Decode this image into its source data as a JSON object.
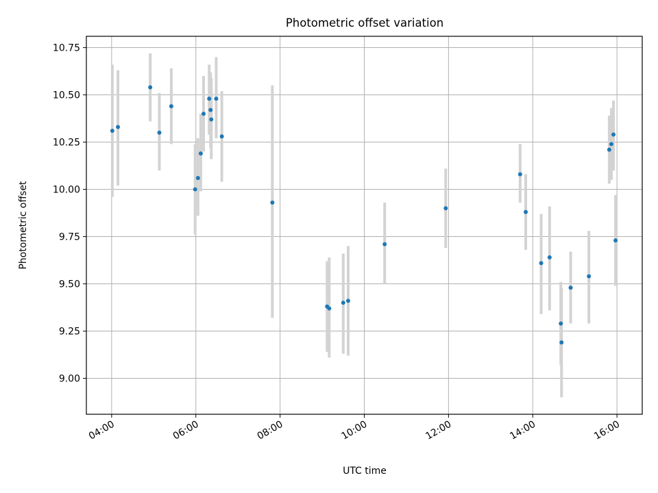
{
  "chart_data": {
    "type": "scatter",
    "title": "Photometric offset variation",
    "xlabel": "UTC time",
    "ylabel": "Photometric offset",
    "x_range_hours": [
      3.4,
      16.6
    ],
    "ylim": [
      8.81,
      10.81
    ],
    "x_ticks": [
      {
        "hour": 4,
        "label": "04:00"
      },
      {
        "hour": 6,
        "label": "06:00"
      },
      {
        "hour": 8,
        "label": "08:00"
      },
      {
        "hour": 10,
        "label": "10:00"
      },
      {
        "hour": 12,
        "label": "12:00"
      },
      {
        "hour": 14,
        "label": "14:00"
      },
      {
        "hour": 16,
        "label": "16:00"
      }
    ],
    "y_ticks": [
      {
        "value": 9.0,
        "label": "9.00"
      },
      {
        "value": 9.25,
        "label": "9.25"
      },
      {
        "value": 9.5,
        "label": "9.50"
      },
      {
        "value": 9.75,
        "label": "9.75"
      },
      {
        "value": 10.0,
        "label": "10.00"
      },
      {
        "value": 10.25,
        "label": "10.25"
      },
      {
        "value": 10.5,
        "label": "10.50"
      },
      {
        "value": 10.75,
        "label": "10.75"
      }
    ],
    "grid": true,
    "legend": "none",
    "colors": {
      "point": "#1f77b4",
      "errorbar": "#d3d3d3",
      "grid": "#b0b0b0"
    },
    "points": [
      {
        "time": "04:01",
        "y": 10.31,
        "lo": 9.96,
        "hi": 10.66
      },
      {
        "time": "04:09",
        "y": 10.33,
        "lo": 10.02,
        "hi": 10.63
      },
      {
        "time": "04:55",
        "y": 10.54,
        "lo": 10.36,
        "hi": 10.72
      },
      {
        "time": "05:08",
        "y": 10.3,
        "lo": 10.1,
        "hi": 10.51
      },
      {
        "time": "05:25",
        "y": 10.44,
        "lo": 10.24,
        "hi": 10.64
      },
      {
        "time": "05:59",
        "y": 10.0,
        "lo": 9.76,
        "hi": 10.24
      },
      {
        "time": "06:03",
        "y": 10.06,
        "lo": 9.86,
        "hi": 10.27
      },
      {
        "time": "06:07",
        "y": 10.19,
        "lo": 9.99,
        "hi": 10.4
      },
      {
        "time": "06:11",
        "y": 10.4,
        "lo": 10.2,
        "hi": 10.6
      },
      {
        "time": "06:19",
        "y": 10.48,
        "lo": 10.29,
        "hi": 10.66
      },
      {
        "time": "06:21",
        "y": 10.42,
        "lo": 10.22,
        "hi": 10.62
      },
      {
        "time": "06:22",
        "y": 10.37,
        "lo": 10.16,
        "hi": 10.59
      },
      {
        "time": "06:29",
        "y": 10.48,
        "lo": 10.27,
        "hi": 10.7
      },
      {
        "time": "06:37",
        "y": 10.28,
        "lo": 10.04,
        "hi": 10.52
      },
      {
        "time": "07:49",
        "y": 9.93,
        "lo": 9.32,
        "hi": 10.55
      },
      {
        "time": "09:07",
        "y": 9.38,
        "lo": 9.14,
        "hi": 9.62
      },
      {
        "time": "09:10",
        "y": 9.37,
        "lo": 9.11,
        "hi": 9.64
      },
      {
        "time": "09:30",
        "y": 9.4,
        "lo": 9.13,
        "hi": 9.66
      },
      {
        "time": "09:37",
        "y": 9.41,
        "lo": 9.12,
        "hi": 9.7
      },
      {
        "time": "10:29",
        "y": 9.71,
        "lo": 9.5,
        "hi": 9.93
      },
      {
        "time": "11:56",
        "y": 9.9,
        "lo": 9.69,
        "hi": 10.11
      },
      {
        "time": "13:42",
        "y": 10.08,
        "lo": 9.93,
        "hi": 10.24
      },
      {
        "time": "13:50",
        "y": 9.88,
        "lo": 9.68,
        "hi": 10.08
      },
      {
        "time": "14:12",
        "y": 9.61,
        "lo": 9.34,
        "hi": 9.87
      },
      {
        "time": "14:24",
        "y": 9.64,
        "lo": 9.36,
        "hi": 9.91
      },
      {
        "time": "14:40",
        "y": 9.29,
        "lo": 9.07,
        "hi": 9.51
      },
      {
        "time": "14:41",
        "y": 9.19,
        "lo": 8.9,
        "hi": 9.48
      },
      {
        "time": "14:54",
        "y": 9.48,
        "lo": 9.29,
        "hi": 9.67
      },
      {
        "time": "15:20",
        "y": 9.54,
        "lo": 9.29,
        "hi": 9.78
      },
      {
        "time": "15:49",
        "y": 10.21,
        "lo": 10.03,
        "hi": 10.39
      },
      {
        "time": "15:52",
        "y": 10.24,
        "lo": 10.05,
        "hi": 10.43
      },
      {
        "time": "15:55",
        "y": 10.29,
        "lo": 10.1,
        "hi": 10.47
      },
      {
        "time": "15:58",
        "y": 9.73,
        "lo": 9.49,
        "hi": 9.97
      }
    ]
  }
}
